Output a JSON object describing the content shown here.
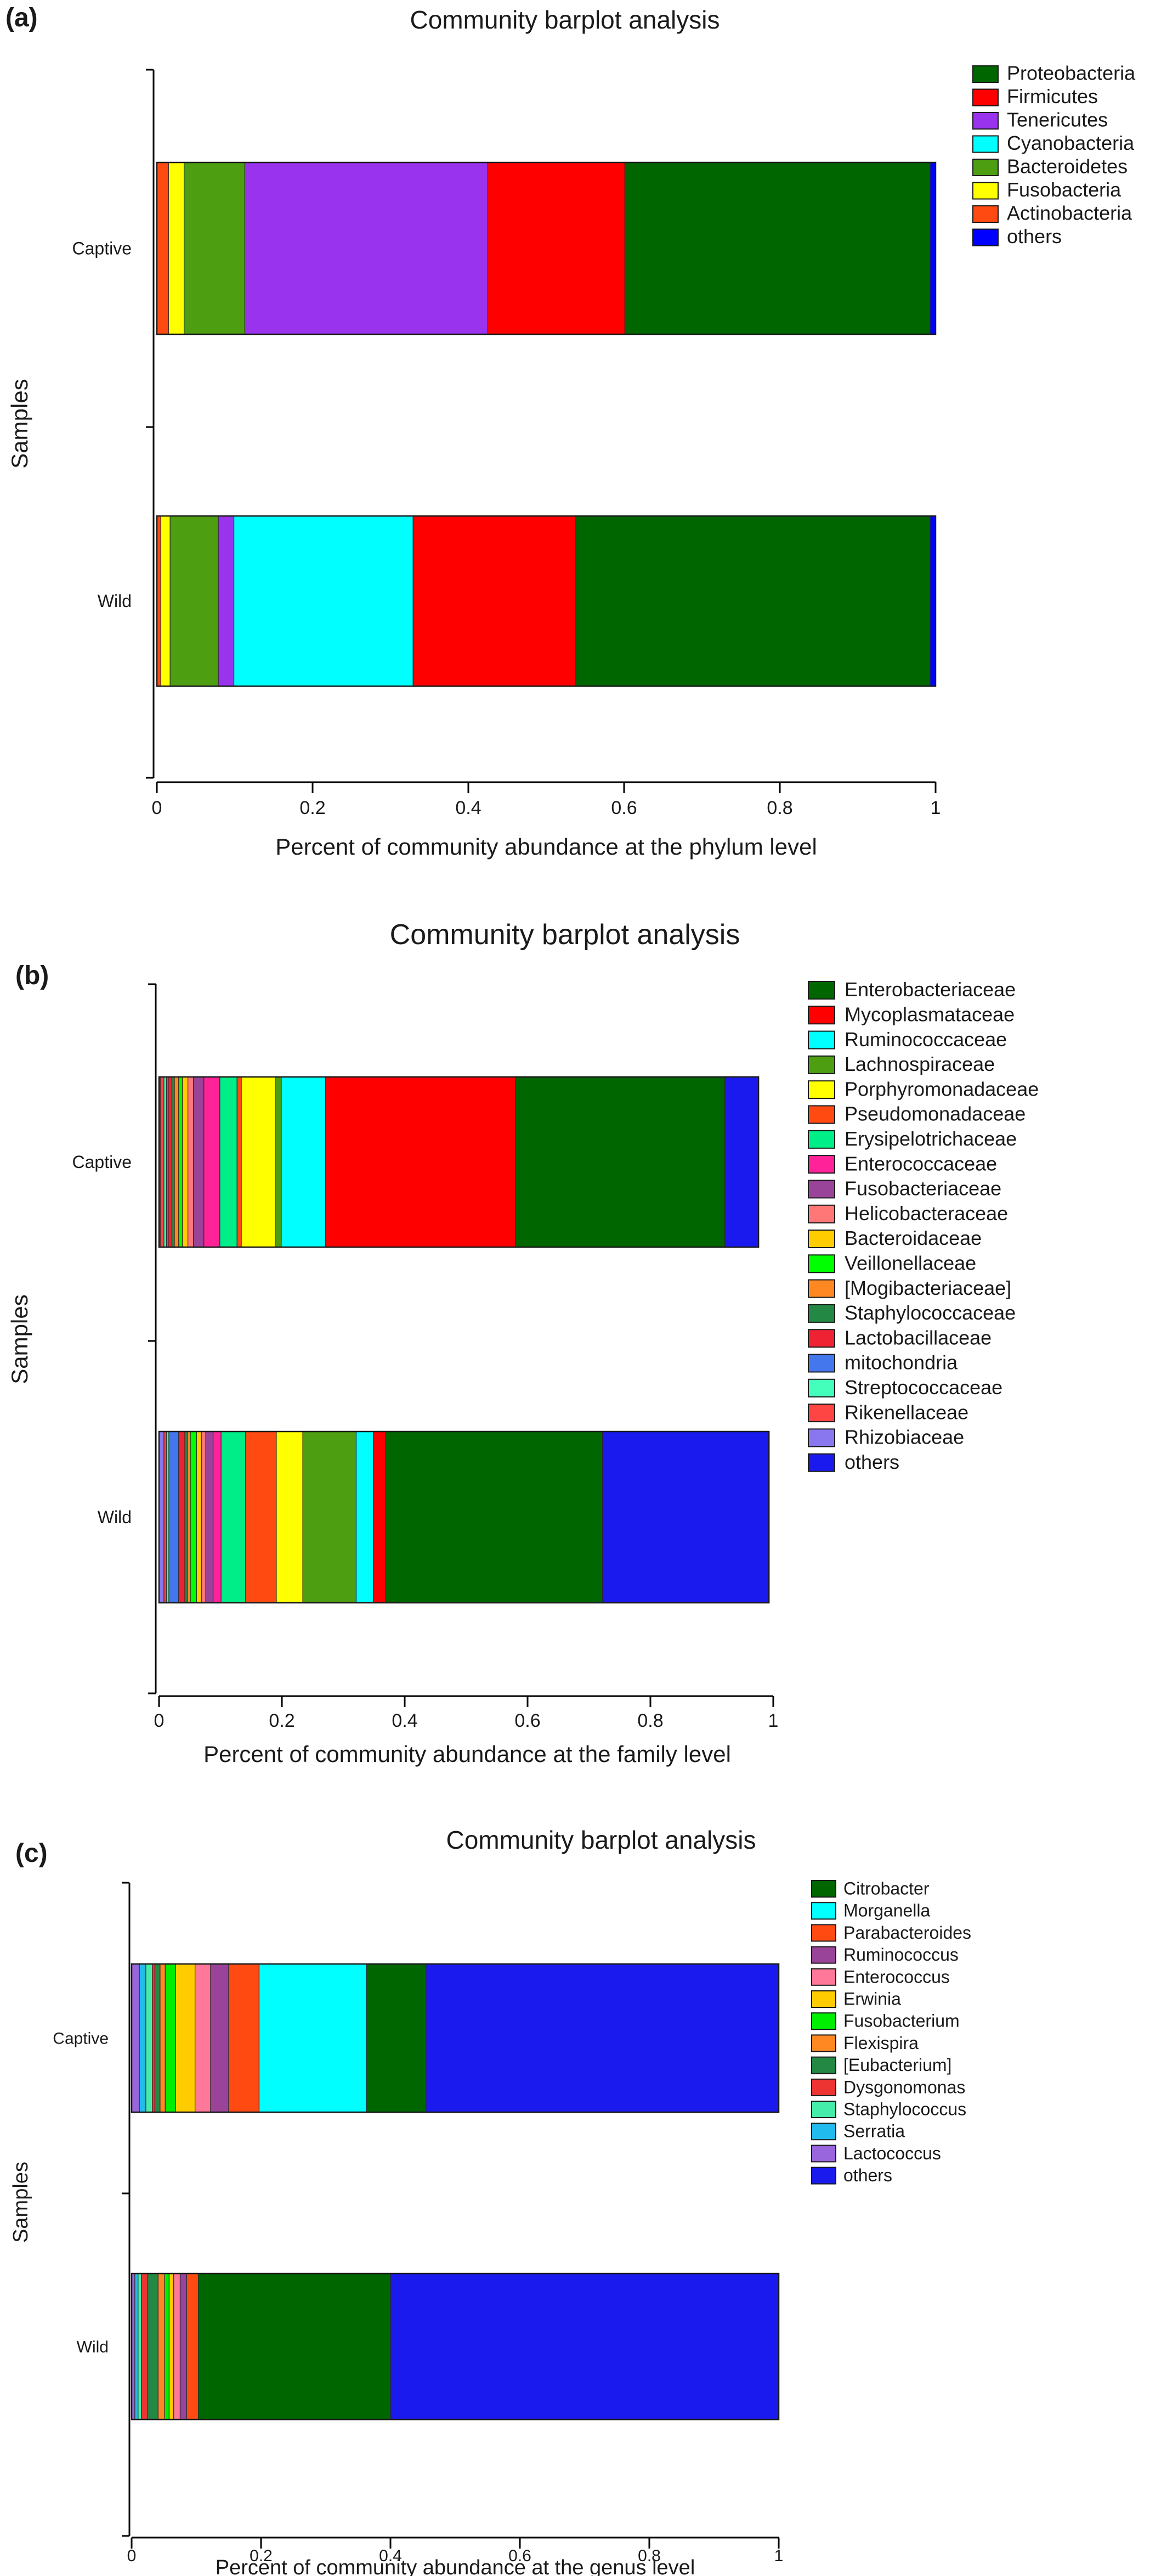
{
  "chart_data": [
    {
      "type": "bar",
      "orientation": "horizontal",
      "stacked": true,
      "panel": "(a)",
      "title": "Community barplot analysis",
      "xlabel": "Percent of community abundance at the phylum level",
      "ylabel": "Samples",
      "xlim": [
        0,
        1
      ],
      "x_ticks": [
        "0",
        "0.2",
        "0.4",
        "0.6",
        "0.8",
        "1"
      ],
      "categories": [
        "Captive",
        "Wild"
      ],
      "legend_position": "top-right",
      "series": [
        {
          "name": "Actinobacteria",
          "color": "#ff4a12",
          "values": [
            0.015,
            0.005
          ]
        },
        {
          "name": "Fusobacteria",
          "color": "#ffff00",
          "values": [
            0.02,
            0.012
          ]
        },
        {
          "name": "Bacteroidetes",
          "color": "#4d9e10",
          "values": [
            0.078,
            0.062
          ]
        },
        {
          "name": "Tenericutes",
          "color": "#9933ee",
          "values": [
            0.312,
            0.02
          ]
        },
        {
          "name": "Cyanobacteria",
          "color": "#00ffff",
          "values": [
            0.0,
            0.23
          ]
        },
        {
          "name": "Firmicutes",
          "color": "#ff0000",
          "values": [
            0.176,
            0.209
          ]
        },
        {
          "name": "Proteobacteria",
          "color": "#006600",
          "values": [
            0.392,
            0.455
          ]
        },
        {
          "name": "others",
          "color": "#0000ff",
          "values": [
            0.007,
            0.007
          ]
        }
      ],
      "legend": [
        "Proteobacteria",
        "Firmicutes",
        "Tenericutes",
        "Cyanobacteria",
        "Bacteroidetes",
        "Fusobacteria",
        "Actinobacteria",
        "others"
      ]
    },
    {
      "type": "bar",
      "orientation": "horizontal",
      "stacked": true,
      "panel": "(b)",
      "title": "Community barplot analysis",
      "xlabel": "Percent of community abundance at the family level",
      "ylabel": "Samples",
      "xlim": [
        0,
        1
      ],
      "x_ticks": [
        "0",
        "0.2",
        "0.4",
        "0.6",
        "0.8",
        "1"
      ],
      "categories": [
        "Captive",
        "Wild"
      ],
      "legend_position": "top-right",
      "series": [
        {
          "name": "Rhizobiaceae",
          "color": "#8877ee",
          "values": [
            0.002,
            0.008
          ]
        },
        {
          "name": "Rikenellaceae",
          "color": "#ff4444",
          "values": [
            0.006,
            0.004
          ]
        },
        {
          "name": "Streptococcaceae",
          "color": "#44ffbb",
          "values": [
            0.004,
            0.004
          ]
        },
        {
          "name": "mitochondria",
          "color": "#4477ee",
          "values": [
            0.003,
            0.016
          ]
        },
        {
          "name": "Lactobacillaceae",
          "color": "#ee2233",
          "values": [
            0.006,
            0.01
          ]
        },
        {
          "name": "Staphylococcaceae",
          "color": "#228844",
          "values": [
            0.004,
            0.004
          ]
        },
        {
          "name": "[Mogibacteriaceae]",
          "color": "#ff8822",
          "values": [
            0.007,
            0.005
          ]
        },
        {
          "name": "Veillonellaceae",
          "color": "#00ff00",
          "values": [
            0.006,
            0.01
          ]
        },
        {
          "name": "Bacteroidaceae",
          "color": "#ffcc00",
          "values": [
            0.009,
            0.008
          ]
        },
        {
          "name": "Helicobacteraceae",
          "color": "#ff7777",
          "values": [
            0.009,
            0.007
          ]
        },
        {
          "name": "Fusobacteriaceae",
          "color": "#994499",
          "values": [
            0.017,
            0.012
          ]
        },
        {
          "name": "Enterococcaceae",
          "color": "#ff2299",
          "values": [
            0.026,
            0.013
          ]
        },
        {
          "name": "Erysipelotrichaceae",
          "color": "#00ee88",
          "values": [
            0.028,
            0.04
          ]
        },
        {
          "name": "Pseudomonadaceae",
          "color": "#ff4a12",
          "values": [
            0.007,
            0.05
          ]
        },
        {
          "name": "Porphyromonadaceae",
          "color": "#ffff00",
          "values": [
            0.055,
            0.043
          ]
        },
        {
          "name": "Lachnospiraceae",
          "color": "#4d9e10",
          "values": [
            0.01,
            0.087
          ]
        },
        {
          "name": "Ruminococcaceae",
          "color": "#00ffff",
          "values": [
            0.072,
            0.028
          ]
        },
        {
          "name": "Mycoplasmataceae",
          "color": "#ff0000",
          "values": [
            0.309,
            0.02
          ]
        },
        {
          "name": "Enterobacteriaceae",
          "color": "#006600",
          "values": [
            0.341,
            0.353
          ]
        },
        {
          "name": "others",
          "color": "#1a1aee",
          "values": [
            0.055,
            0.271
          ]
        }
      ],
      "legend": [
        "Enterobacteriaceae",
        "Mycoplasmataceae",
        "Ruminococcaceae",
        "Lachnospiraceae",
        "Porphyromonadaceae",
        "Pseudomonadaceae",
        "Erysipelotrichaceae",
        "Enterococcaceae",
        "Fusobacteriaceae",
        "Helicobacteraceae",
        "Bacteroidaceae",
        "Veillonellaceae",
        "[Mogibacteriaceae]",
        "Staphylococcaceae",
        "Lactobacillaceae",
        "mitochondria",
        "Streptococcaceae",
        "Rikenellaceae",
        "Rhizobiaceae",
        "others"
      ]
    },
    {
      "type": "bar",
      "orientation": "horizontal",
      "stacked": true,
      "panel": "(c)",
      "title": "Community barplot analysis",
      "xlabel": "Percent of community abundance at the genus level",
      "ylabel": "Samples",
      "xlim": [
        0,
        1
      ],
      "x_ticks": [
        "0",
        "0.2",
        "0.4",
        "0.6",
        "0.8",
        "1"
      ],
      "categories": [
        "Captive",
        "Wild"
      ],
      "legend_position": "top-right",
      "series": [
        {
          "name": "Lactococcus",
          "color": "#9966dd",
          "values": [
            0.012,
            0.005
          ]
        },
        {
          "name": "Serratia",
          "color": "#22bbee",
          "values": [
            0.01,
            0.005
          ]
        },
        {
          "name": "Staphylococcus",
          "color": "#44eeaa",
          "values": [
            0.01,
            0.005
          ]
        },
        {
          "name": "Dysgonomonas",
          "color": "#ee3333",
          "values": [
            0.004,
            0.01
          ]
        },
        {
          "name": "[Eubacterium]",
          "color": "#228844",
          "values": [
            0.008,
            0.016
          ]
        },
        {
          "name": "Flexispira",
          "color": "#ff8822",
          "values": [
            0.008,
            0.01
          ]
        },
        {
          "name": "Fusobacterium",
          "color": "#00ee00",
          "values": [
            0.016,
            0.007
          ]
        },
        {
          "name": "Erwinia",
          "color": "#ffcc00",
          "values": [
            0.03,
            0.007
          ]
        },
        {
          "name": "Enterococcus",
          "color": "#ff7799",
          "values": [
            0.024,
            0.01
          ]
        },
        {
          "name": "Ruminococcus",
          "color": "#994499",
          "values": [
            0.028,
            0.01
          ]
        },
        {
          "name": "Parabacteroides",
          "color": "#ff4a12",
          "values": [
            0.047,
            0.018
          ]
        },
        {
          "name": "Morganella",
          "color": "#00ffff",
          "values": [
            0.166,
            0.0
          ]
        },
        {
          "name": "Citrobacter",
          "color": "#006600",
          "values": [
            0.092,
            0.297
          ]
        },
        {
          "name": "others",
          "color": "#1a1aee",
          "values": [
            0.545,
            0.6
          ]
        }
      ],
      "legend": [
        "Citrobacter",
        "Morganella",
        "Parabacteroides",
        "Ruminococcus",
        "Enterococcus",
        "Erwinia",
        "Fusobacterium",
        "Flexispira",
        "[Eubacterium]",
        "Dysgonomonas",
        "Staphylococcus",
        "Serratia",
        "Lactococcus",
        "others"
      ]
    }
  ]
}
